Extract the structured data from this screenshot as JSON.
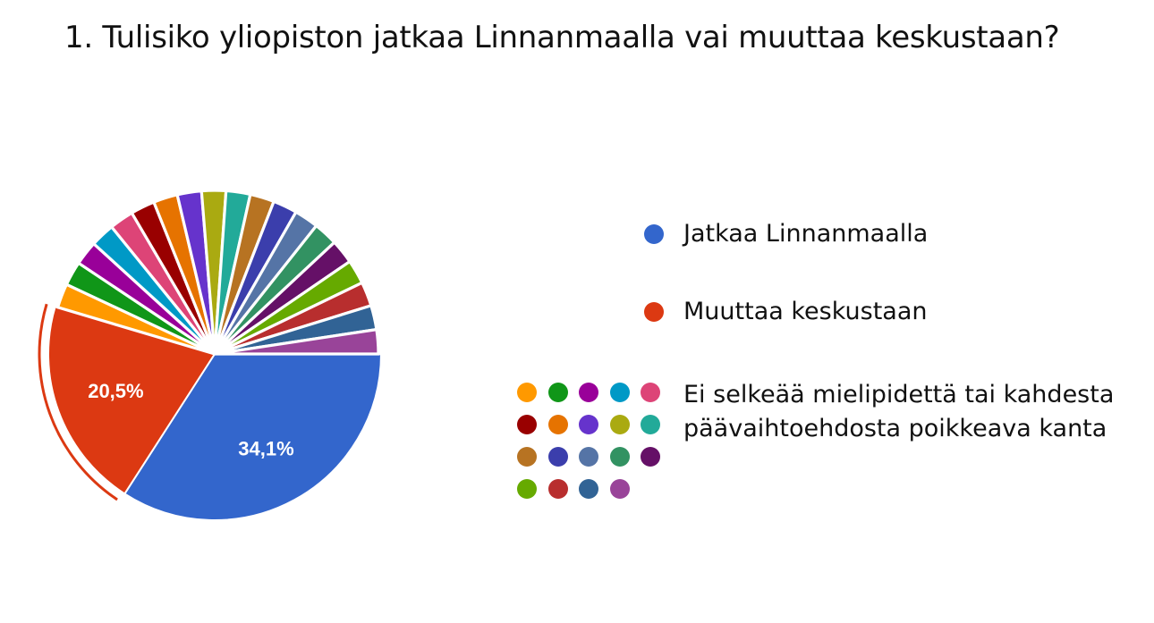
{
  "chart_data": {
    "type": "pie",
    "title": "1. Tulisiko yliopiston jatkaa Linnanmaalla vai muuttaa keskustaan?",
    "slices": [
      {
        "label": "Jatkaa Linnanmaalla",
        "value": 34.1,
        "color": "#3366cc",
        "data_label": "34,1%"
      },
      {
        "label": "Muuttaa keskustaan",
        "value": 20.5,
        "color": "#dc3912",
        "data_label": "20,5%"
      }
    ],
    "other_group": {
      "label": "Ei selkeää mielipidettä tai kahdesta päävaihtoehdosta poikkeava kanta",
      "slice_count": 19,
      "value_each": 2.39,
      "colors": [
        "#ff9900",
        "#109618",
        "#990099",
        "#0099c6",
        "#dd4477",
        "#990000",
        "#e67300",
        "#6633cc",
        "#aaaa11",
        "#22aa99",
        "#b77322",
        "#3b3eac",
        "#5574a6",
        "#329262",
        "#651067",
        "#66aa00",
        "#b82e2e",
        "#316395",
        "#994499"
      ]
    }
  }
}
